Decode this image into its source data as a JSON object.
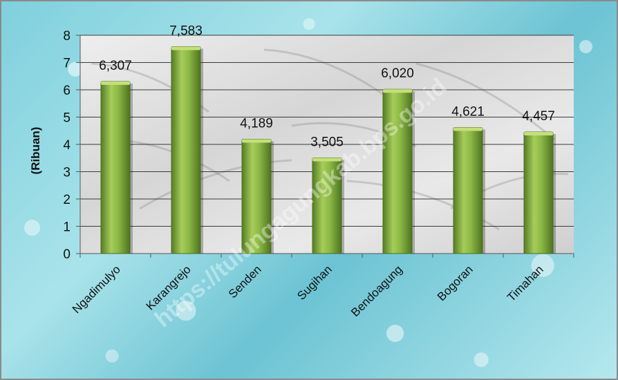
{
  "chart_data": {
    "type": "bar",
    "ylabel": "(Ribuan)",
    "ylim": [
      0,
      8
    ],
    "yticks": [
      "0",
      "1",
      "2",
      "3",
      "4",
      "5",
      "6",
      "7",
      "8"
    ],
    "categories": [
      "Ngadimulyo",
      "Karangrejo",
      "Senden",
      "Sugihan",
      "Bendoagung",
      "Bogoran",
      "Timahan"
    ],
    "values": [
      6.307,
      7.583,
      4.189,
      3.505,
      6.02,
      4.621,
      4.457
    ],
    "data_labels": [
      "6,307",
      "7,583",
      "4,189",
      "3,505",
      "6,020",
      "4,621",
      "4,457"
    ],
    "grid": true,
    "legend": "none",
    "colors": {
      "bar": "#7aa63a",
      "bar_highlight": "#b7d96a",
      "bar_shadow": "#4e7320",
      "plot_background": "#e4e4e4",
      "gridline": "#3a3a3a"
    }
  },
  "watermark": "https://tulungagungkab.bps.go.id"
}
